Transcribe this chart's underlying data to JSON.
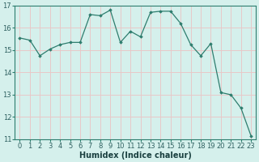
{
  "x": [
    0,
    1,
    2,
    3,
    4,
    5,
    6,
    7,
    8,
    9,
    10,
    11,
    12,
    13,
    14,
    15,
    16,
    17,
    18,
    19,
    20,
    21,
    22,
    23
  ],
  "y": [
    15.55,
    15.45,
    14.75,
    15.05,
    15.25,
    15.35,
    15.35,
    16.6,
    16.55,
    16.8,
    15.35,
    15.85,
    15.6,
    16.7,
    16.75,
    16.75,
    16.2,
    15.25,
    14.75,
    15.3,
    13.1,
    13.0,
    12.4,
    11.15
  ],
  "xlabel": "Humidex (Indice chaleur)",
  "ylim": [
    11,
    17
  ],
  "xlim": [
    -0.5,
    23.5
  ],
  "yticks": [
    11,
    12,
    13,
    14,
    15,
    16,
    17
  ],
  "xticks": [
    0,
    1,
    2,
    3,
    4,
    5,
    6,
    7,
    8,
    9,
    10,
    11,
    12,
    13,
    14,
    15,
    16,
    17,
    18,
    19,
    20,
    21,
    22,
    23
  ],
  "line_color": "#2e7d6e",
  "marker": "D",
  "marker_size": 1.8,
  "bg_color": "#d5f0ec",
  "grid_color": "#e8c8c8",
  "axes_color": "#2e7d6e",
  "tick_label_color": "#2e6060",
  "xlabel_color": "#1a4040",
  "font_size_ticks": 6.0,
  "font_size_xlabel": 7.0,
  "line_width": 0.9
}
